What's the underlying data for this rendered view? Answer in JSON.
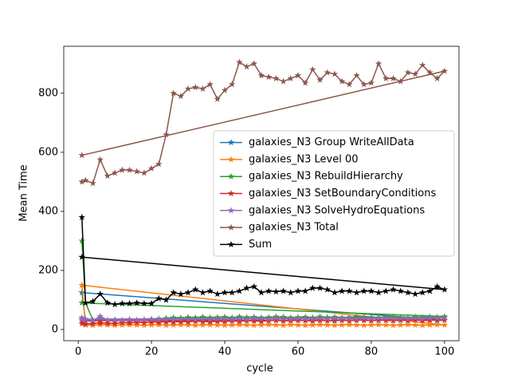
{
  "chart_data": {
    "type": "line",
    "x_label": "cycle",
    "y_label": "Mean Time",
    "x": [
      1,
      2,
      4,
      6,
      8,
      10,
      12,
      14,
      16,
      18,
      20,
      22,
      24,
      26,
      28,
      30,
      32,
      34,
      36,
      38,
      40,
      42,
      44,
      46,
      48,
      50,
      52,
      54,
      56,
      58,
      60,
      62,
      64,
      66,
      68,
      70,
      72,
      74,
      76,
      78,
      80,
      82,
      84,
      86,
      88,
      90,
      92,
      94,
      96,
      98,
      100,
      1
    ],
    "xlim": [
      -3.95,
      103.95
    ],
    "xticks": [
      0,
      20,
      40,
      60,
      80,
      100
    ],
    "ylim": [
      -38,
      959
    ],
    "yticks": [
      0,
      200,
      400,
      600,
      800
    ],
    "grid": false,
    "marker": "star",
    "legend_position": "center right",
    "series": [
      {
        "name": "galaxies_N3 Group WriteAllData",
        "color": "#1f77b4",
        "values": [
          125,
          30,
          28,
          32,
          30,
          29,
          31,
          30,
          30,
          32,
          31,
          30,
          30,
          28,
          32,
          31,
          30,
          33,
          30,
          32,
          31,
          30,
          32,
          30,
          33,
          31,
          30,
          32,
          30,
          31,
          33,
          30,
          32,
          31,
          30,
          29,
          32,
          30,
          31,
          33,
          30,
          31,
          32,
          30,
          31,
          30,
          32,
          31,
          33,
          30,
          32,
          125
        ]
      },
      {
        "name": "galaxies_N3 Level 00",
        "color": "#ff7f0e",
        "values": [
          150,
          15,
          14,
          16,
          15,
          14,
          15,
          16,
          15,
          14,
          15,
          16,
          14,
          15,
          16,
          15,
          14,
          15,
          16,
          15,
          14,
          15,
          16,
          15,
          14,
          15,
          16,
          15,
          14,
          16,
          15,
          14,
          15,
          16,
          15,
          14,
          15,
          16,
          15,
          14,
          15,
          16,
          15,
          14,
          15,
          16,
          15,
          14,
          15,
          16,
          15,
          150
        ]
      },
      {
        "name": "galaxies_N3 RebuildHierarchy",
        "color": "#2ca02c",
        "values": [
          300,
          90,
          32,
          35,
          30,
          33,
          31,
          34,
          32,
          33,
          35,
          36,
          38,
          40,
          39,
          41,
          40,
          42,
          40,
          41,
          42,
          40,
          43,
          41,
          42,
          40,
          41,
          43,
          42,
          40,
          41,
          42,
          40,
          43,
          41,
          42,
          40,
          41,
          43,
          42,
          41,
          40,
          42,
          43,
          41,
          40,
          42,
          41,
          43,
          42,
          44,
          90
        ]
      },
      {
        "name": "galaxies_N3 SetBoundaryConditions",
        "color": "#d62728",
        "values": [
          20,
          18,
          20,
          22,
          21,
          20,
          23,
          22,
          24,
          23,
          25,
          24,
          26,
          25,
          27,
          26,
          28,
          27,
          26,
          28,
          27,
          29,
          28,
          30,
          29,
          28,
          30,
          31,
          29,
          30,
          31,
          30,
          29,
          31,
          30,
          32,
          31,
          30,
          32,
          31,
          30,
          32,
          31,
          30,
          33,
          31,
          32,
          30,
          31,
          33,
          32,
          30
        ]
      },
      {
        "name": "galaxies_N3 SolveHydroEquations",
        "color": "#9467bd",
        "values": [
          40,
          35,
          30,
          45,
          32,
          33,
          31,
          34,
          32,
          33,
          34,
          33,
          35,
          34,
          36,
          35,
          34,
          36,
          35,
          37,
          36,
          35,
          37,
          36,
          38,
          37,
          36,
          38,
          37,
          36,
          38,
          37,
          36,
          38,
          37,
          39,
          38,
          37,
          36,
          38,
          37,
          38,
          39,
          37,
          38,
          36,
          38,
          37,
          39,
          38,
          40,
          35
        ]
      },
      {
        "name": "galaxies_N3 Total",
        "color": "#8c564b",
        "values": [
          500,
          505,
          495,
          575,
          520,
          530,
          540,
          540,
          535,
          530,
          545,
          560,
          660,
          800,
          790,
          815,
          820,
          815,
          830,
          780,
          810,
          830,
          905,
          890,
          900,
          860,
          855,
          850,
          840,
          850,
          860,
          835,
          880,
          845,
          870,
          865,
          840,
          830,
          860,
          830,
          835,
          900,
          850,
          850,
          840,
          870,
          865,
          895,
          870,
          850,
          875,
          590
        ]
      },
      {
        "name": "Sum",
        "color": "#000000",
        "values": [
          380,
          90,
          95,
          120,
          90,
          85,
          88,
          88,
          90,
          88,
          88,
          105,
          100,
          125,
          120,
          125,
          135,
          125,
          130,
          120,
          125,
          125,
          130,
          140,
          145,
          125,
          130,
          128,
          130,
          125,
          130,
          130,
          140,
          140,
          135,
          125,
          130,
          130,
          125,
          130,
          130,
          125,
          130,
          135,
          130,
          125,
          120,
          125,
          130,
          145,
          135,
          245
        ]
      }
    ]
  }
}
